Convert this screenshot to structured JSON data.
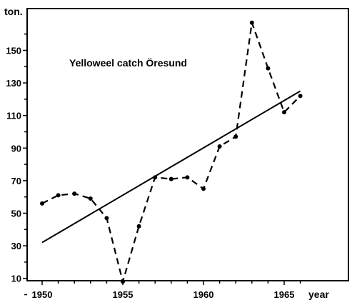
{
  "chart_data": {
    "type": "line",
    "title": "Yelloweel catch Öresund",
    "xlabel": "year",
    "ylabel": "ton.",
    "xlim": [
      1950,
      1966
    ],
    "ylim": [
      0,
      170
    ],
    "x_ticks": [
      1950,
      1955,
      1960,
      1965
    ],
    "y_ticks": [
      10,
      30,
      50,
      70,
      90,
      110,
      130,
      150
    ],
    "grid": false,
    "series": [
      {
        "style": "dashed",
        "markers": true,
        "x": [
          1950,
          1951,
          1952,
          1953,
          1954,
          1955,
          1956,
          1957,
          1958,
          1959,
          1960,
          1961,
          1962,
          1963,
          1964,
          1965,
          1966
        ],
        "y": [
          56,
          61,
          62,
          59,
          47,
          8,
          42,
          72,
          71,
          72,
          65,
          91,
          97,
          167,
          139,
          112,
          122
        ]
      },
      {
        "style": "solid",
        "markers": false,
        "x": [
          1950,
          1966
        ],
        "y": [
          32,
          125
        ]
      }
    ]
  }
}
